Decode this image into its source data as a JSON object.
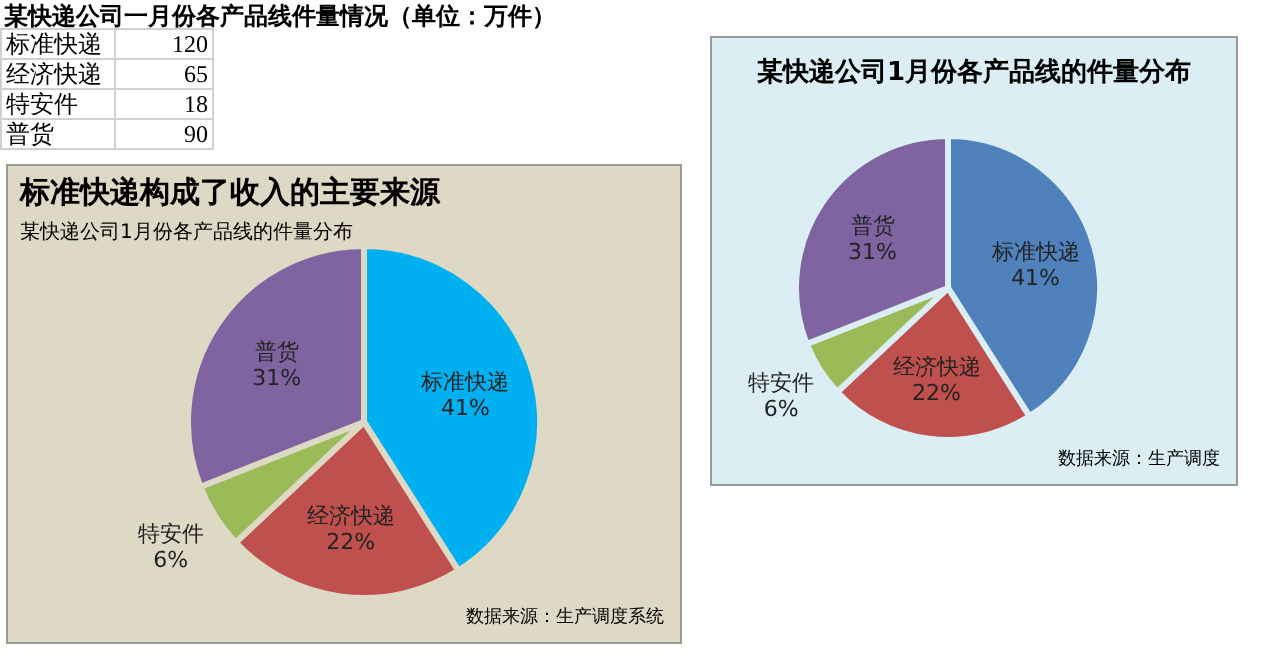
{
  "chart_data": [
    {
      "type": "other",
      "title": "某快递公司一月份各产品线件量情况（单位：万件）",
      "categories": [
        "标准快递",
        "经济快递",
        "特安件",
        "普货"
      ],
      "values": [
        120,
        65,
        18,
        90
      ],
      "data_labels": true
    },
    {
      "type": "pie",
      "title": "标准快递构成了收入的主要来源",
      "subtitle": "某快递公司1月份各产品线的件量分布",
      "categories": [
        "标准快递",
        "经济快递",
        "特安件",
        "普货"
      ],
      "values": [
        41,
        22,
        6,
        31
      ],
      "value_labels": [
        "41%",
        "22%",
        "6%",
        "31%"
      ],
      "colors": [
        "#00b0f0",
        "#c0504d",
        "#9bbb59",
        "#8064a2"
      ],
      "annotations": [
        "数据来源：生产调度系统"
      ],
      "legend": false
    },
    {
      "type": "pie",
      "title": "某快递公司1月份各产品线的件量分布",
      "categories": [
        "标准快递",
        "经济快递",
        "特安件",
        "普货"
      ],
      "values": [
        41,
        22,
        6,
        31
      ],
      "value_labels": [
        "41%",
        "22%",
        "6%",
        "31%"
      ],
      "colors": [
        "#4f81bd",
        "#c0504d",
        "#9bbb59",
        "#8064a2"
      ],
      "annotations": [
        "数据来源：生产调度"
      ],
      "legend": false
    }
  ]
}
